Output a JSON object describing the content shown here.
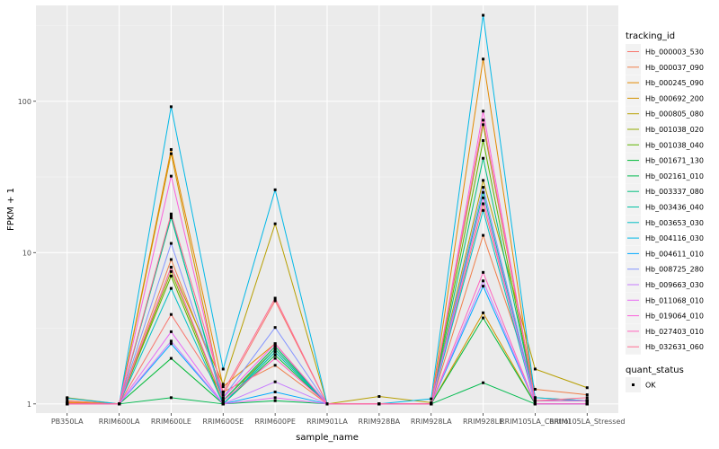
{
  "chart_data": {
    "type": "line",
    "xlabel": "sample_name",
    "ylabel": "FPKM + 1",
    "y_scale": "log10",
    "ylim": [
      0.87,
      430
    ],
    "y_ticks": [
      1,
      10,
      100
    ],
    "y_tick_labels": [
      "1",
      "10",
      "100"
    ],
    "grid": true,
    "categories": [
      "PB350LA",
      "RRIM600LA",
      "RRIM600LE",
      "RRIM600SE",
      "RRIM600PE",
      "RRIM901LA",
      "RRIM928BA",
      "RRIM928LA",
      "RRIM928LE",
      "RRIM105LA_Control",
      "RRIM105LA_Stressed"
    ],
    "legend": {
      "placement": "right",
      "color_title": "tracking_id",
      "point_title": "quant_status",
      "point_labels": [
        "OK"
      ]
    },
    "series": [
      {
        "name": "Hb_000003_530",
        "color": "#F8766D",
        "values": [
          1.03,
          1.0,
          3.9,
          1.15,
          4.8,
          1.0,
          1.0,
          1.0,
          21.0,
          1.05,
          1.05
        ]
      },
      {
        "name": "Hb_000037_090",
        "color": "#F07E4A",
        "values": [
          1.05,
          1.0,
          9.0,
          1.2,
          1.8,
          1.0,
          1.0,
          1.0,
          13.0,
          1.25,
          1.15
        ]
      },
      {
        "name": "Hb_000245_090",
        "color": "#E38900",
        "values": [
          1.02,
          1.0,
          48.0,
          1.3,
          2.5,
          1.0,
          1.0,
          1.0,
          190.0,
          1.05,
          1.05
        ]
      },
      {
        "name": "Hb_000692_200",
        "color": "#D39200",
        "values": [
          1.0,
          1.0,
          45.0,
          1.05,
          2.4,
          1.0,
          1.0,
          1.0,
          4.0,
          1.0,
          1.0
        ]
      },
      {
        "name": "Hb_000805_080",
        "color": "#B79F00",
        "values": [
          1.1,
          1.0,
          8.0,
          1.35,
          15.5,
          1.0,
          1.12,
          1.02,
          30.0,
          1.7,
          1.28
        ]
      },
      {
        "name": "Hb_001038_020",
        "color": "#93AA00",
        "values": [
          1.0,
          1.0,
          7.5,
          1.05,
          2.3,
          1.0,
          1.0,
          1.0,
          70.0,
          1.1,
          1.05
        ]
      },
      {
        "name": "Hb_001038_040",
        "color": "#5EB300",
        "values": [
          1.0,
          1.0,
          7.0,
          1.0,
          2.2,
          1.0,
          1.0,
          1.0,
          55.0,
          1.05,
          1.05
        ]
      },
      {
        "name": "Hb_001671_130",
        "color": "#00BA38",
        "values": [
          1.0,
          1.0,
          2.0,
          1.0,
          2.1,
          1.0,
          1.0,
          1.0,
          3.7,
          1.0,
          1.0
        ]
      },
      {
        "name": "Hb_002161_010",
        "color": "#00BB4E",
        "values": [
          1.0,
          1.0,
          1.1,
          1.0,
          1.05,
          1.0,
          1.0,
          1.0,
          1.38,
          1.0,
          1.0
        ]
      },
      {
        "name": "Hb_003337_080",
        "color": "#00BF7D",
        "values": [
          1.0,
          1.0,
          17.0,
          1.05,
          2.4,
          1.0,
          1.0,
          1.0,
          42.0,
          1.05,
          1.05
        ]
      },
      {
        "name": "Hb_003436_040",
        "color": "#00C1A3",
        "values": [
          1.0,
          1.0,
          17.5,
          1.0,
          2.3,
          1.0,
          1.0,
          1.0,
          25.0,
          1.0,
          1.0
        ]
      },
      {
        "name": "Hb_003653_030",
        "color": "#00BFC4",
        "values": [
          1.0,
          1.0,
          5.8,
          1.0,
          2.2,
          1.0,
          1.0,
          1.0,
          19.0,
          1.0,
          1.0
        ]
      },
      {
        "name": "Hb_004116_030",
        "color": "#00B8E7",
        "values": [
          1.09,
          1.0,
          92.0,
          1.7,
          26.0,
          1.0,
          1.0,
          1.08,
          370.0,
          1.1,
          1.05
        ]
      },
      {
        "name": "Hb_004611_010",
        "color": "#00A9FF",
        "values": [
          1.0,
          1.0,
          2.5,
          1.0,
          1.2,
          1.0,
          1.0,
          1.0,
          6.0,
          1.0,
          1.0
        ]
      },
      {
        "name": "Hb_008725_280",
        "color": "#8494FF",
        "values": [
          1.0,
          1.0,
          11.5,
          1.1,
          3.2,
          1.0,
          1.0,
          1.0,
          27.0,
          1.05,
          1.05
        ]
      },
      {
        "name": "Hb_009663_030",
        "color": "#C77CFF",
        "values": [
          1.0,
          1.0,
          2.6,
          1.0,
          1.4,
          1.0,
          1.0,
          1.0,
          6.5,
          1.0,
          1.0
        ]
      },
      {
        "name": "Hb_011068_010",
        "color": "#E76BF3",
        "values": [
          1.0,
          1.0,
          3.0,
          1.0,
          1.1,
          1.0,
          1.0,
          1.0,
          23.0,
          1.0,
          1.0
        ]
      },
      {
        "name": "Hb_019064_010",
        "color": "#FA62DB",
        "values": [
          1.0,
          1.0,
          32.0,
          1.1,
          2.5,
          1.0,
          1.0,
          1.0,
          86.0,
          1.05,
          1.05
        ]
      },
      {
        "name": "Hb_027403_010",
        "color": "#FF62BC",
        "values": [
          1.0,
          1.0,
          8.0,
          1.05,
          2.0,
          1.0,
          1.0,
          1.0,
          7.4,
          1.0,
          1.0
        ]
      },
      {
        "name": "Hb_032631_060",
        "color": "#FF6C91",
        "values": [
          1.0,
          1.0,
          18.0,
          1.2,
          5.0,
          1.0,
          1.0,
          1.0,
          75.0,
          1.05,
          1.1
        ]
      }
    ]
  }
}
